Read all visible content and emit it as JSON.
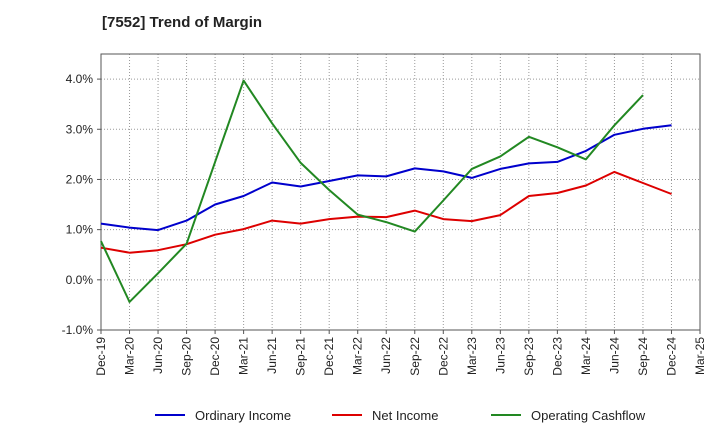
{
  "chart_data": {
    "type": "line",
    "title": "[7552]  Trend of Margin",
    "xlabel": "",
    "ylabel": "",
    "categories": [
      "Dec-19",
      "Mar-20",
      "Jun-20",
      "Sep-20",
      "Dec-20",
      "Mar-21",
      "Jun-21",
      "Sep-21",
      "Dec-21",
      "Mar-22",
      "Jun-22",
      "Sep-22",
      "Dec-22",
      "Mar-23",
      "Jun-23",
      "Sep-23",
      "Dec-23",
      "Mar-24",
      "Jun-24",
      "Sep-24",
      "Dec-24",
      "Mar-25"
    ],
    "y_tick_labels": [
      "4.0%",
      "3.0%",
      "2.0%",
      "1.0%",
      "0.0%",
      "-1.0%"
    ],
    "y_ticks": [
      4,
      3,
      2,
      1,
      0,
      -1
    ],
    "ylim": [
      -1,
      4.5
    ],
    "grid": true,
    "legend_position": "bottom",
    "series": [
      {
        "name": "Ordinary Income",
        "color": "#0000cc",
        "values": [
          1.12,
          1.04,
          0.99,
          1.18,
          1.5,
          1.67,
          1.94,
          1.86,
          1.97,
          2.08,
          2.06,
          2.22,
          2.16,
          2.03,
          2.21,
          2.32,
          2.35,
          2.57,
          2.89,
          3.01,
          3.08,
          null
        ]
      },
      {
        "name": "Net Income",
        "color": "#dd0000",
        "values": [
          0.64,
          0.54,
          0.59,
          0.71,
          0.9,
          1.01,
          1.18,
          1.12,
          1.21,
          1.26,
          1.25,
          1.38,
          1.21,
          1.17,
          1.29,
          1.67,
          1.73,
          1.88,
          2.15,
          1.93,
          1.71,
          null
        ]
      },
      {
        "name": "Operating Cashflow",
        "color": "#228822",
        "values": [
          0.77,
          -0.44,
          0.13,
          0.72,
          2.35,
          3.97,
          3.12,
          2.33,
          1.79,
          1.3,
          1.15,
          0.96,
          1.58,
          2.21,
          2.46,
          2.85,
          2.64,
          2.4,
          3.08,
          3.68,
          null,
          null
        ]
      }
    ]
  }
}
